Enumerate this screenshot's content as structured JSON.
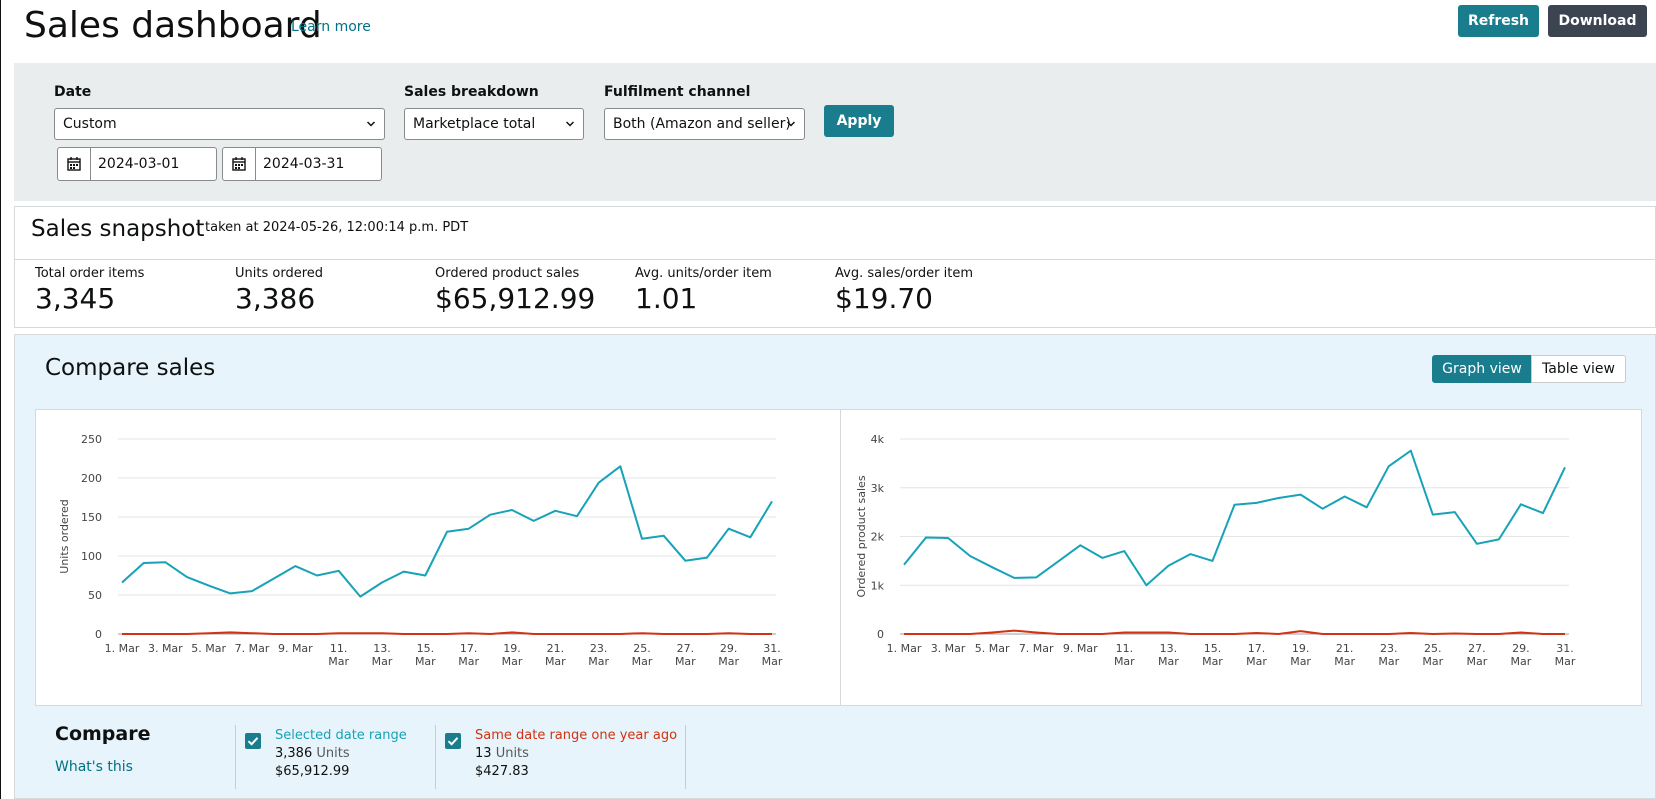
{
  "header": {
    "title": "Sales dashboard",
    "learn_more": "Learn more",
    "refresh_label": "Refresh",
    "download_label": "Download"
  },
  "filters": {
    "date_label": "Date",
    "date_value": "Custom",
    "start_date": "2024-03-01",
    "end_date": "2024-03-31",
    "breakdown_label": "Sales breakdown",
    "breakdown_value": "Marketplace total",
    "channel_label": "Fulfilment channel",
    "channel_value": "Both (Amazon and seller)",
    "apply_label": "Apply"
  },
  "snapshot": {
    "title": "Sales snapshot",
    "taken": "taken at 2024-05-26, 12:00:14 p.m. PDT",
    "metrics": [
      {
        "label": "Total order items",
        "value": "3,345"
      },
      {
        "label": "Units ordered",
        "value": "3,386"
      },
      {
        "label": "Ordered product sales",
        "value": "$65,912.99"
      },
      {
        "label": "Avg. units/order item",
        "value": "1.01"
      },
      {
        "label": "Avg. sales/order item",
        "value": "$19.70"
      }
    ]
  },
  "compare": {
    "title": "Compare sales",
    "graph_view": "Graph view",
    "table_view": "Table view",
    "label": "Compare",
    "whats_this": "What's this",
    "series": [
      {
        "name": "Selected date range",
        "units": "3,386",
        "units_word": "Units",
        "sales": "$65,912.99",
        "color": "#17a2b8"
      },
      {
        "name": "Same date range one year ago",
        "units": "13",
        "units_word": "Units",
        "sales": "$427.83",
        "color": "#d13212"
      }
    ]
  },
  "colors": {
    "teal": "#1a7d8e",
    "line_current": "#17a2b8",
    "line_previous": "#d13212",
    "link": "#007185"
  },
  "chart_data": [
    {
      "type": "line",
      "ylabel": "Units ordered",
      "ylim": [
        0,
        250
      ],
      "yticks": [
        0,
        50,
        100,
        150,
        200,
        250
      ],
      "ytick_labels": [
        "0",
        "50",
        "100",
        "150",
        "200",
        "250"
      ],
      "xtick_labels": [
        "1. Mar",
        "3. Mar",
        "5. Mar",
        "7. Mar",
        "9. Mar",
        "11. Mar",
        "13. Mar",
        "15. Mar",
        "17. Mar",
        "19. Mar",
        "21. Mar",
        "23. Mar",
        "25. Mar",
        "27. Mar",
        "29. Mar",
        "31. Mar"
      ],
      "x": [
        1,
        2,
        3,
        4,
        5,
        6,
        7,
        8,
        9,
        10,
        11,
        12,
        13,
        14,
        15,
        16,
        17,
        18,
        19,
        20,
        21,
        22,
        23,
        24,
        25,
        26,
        27,
        28,
        29,
        30,
        31
      ],
      "grid": true,
      "series": [
        {
          "name": "Selected date range",
          "values": [
            66,
            91,
            92,
            73,
            62,
            52,
            55,
            71,
            87,
            75,
            81,
            48,
            66,
            80,
            75,
            131,
            135,
            153,
            159,
            145,
            158,
            151,
            194,
            215,
            122,
            126,
            94,
            98,
            135,
            124,
            170
          ]
        },
        {
          "name": "Same date range one year ago",
          "values": [
            0,
            0,
            0,
            0,
            1,
            2,
            1,
            0,
            0,
            0,
            1,
            1,
            1,
            0,
            0,
            0,
            1,
            0,
            2,
            0,
            0,
            0,
            0,
            0,
            1,
            0,
            0,
            0,
            1,
            0,
            0
          ]
        }
      ]
    },
    {
      "type": "line",
      "ylabel": "Ordered product sales",
      "ylim": [
        0,
        4000
      ],
      "yticks": [
        0,
        1000,
        2000,
        3000,
        4000
      ],
      "ytick_labels": [
        "0",
        "1k",
        "2k",
        "3k",
        "4k"
      ],
      "xtick_labels": [
        "1. Mar",
        "3. Mar",
        "5. Mar",
        "7. Mar",
        "9. Mar",
        "11. Mar",
        "13. Mar",
        "15. Mar",
        "17. Mar",
        "19. Mar",
        "21. Mar",
        "23. Mar",
        "25. Mar",
        "27. Mar",
        "29. Mar",
        "31. Mar"
      ],
      "x": [
        1,
        2,
        3,
        4,
        5,
        6,
        7,
        8,
        9,
        10,
        11,
        12,
        13,
        14,
        15,
        16,
        17,
        18,
        19,
        20,
        21,
        22,
        23,
        24,
        25,
        26,
        27,
        28,
        29,
        30,
        31
      ],
      "grid": true,
      "series": [
        {
          "name": "Selected date range",
          "values": [
            1420,
            1980,
            1970,
            1600,
            1370,
            1150,
            1160,
            1490,
            1820,
            1560,
            1700,
            1000,
            1400,
            1640,
            1500,
            2650,
            2690,
            2790,
            2860,
            2570,
            2820,
            2600,
            3440,
            3760,
            2450,
            2500,
            1850,
            1940,
            2660,
            2480,
            3420
          ]
        },
        {
          "name": "Same date range one year ago",
          "values": [
            0,
            0,
            0,
            0,
            30,
            70,
            30,
            0,
            0,
            0,
            30,
            30,
            30,
            0,
            0,
            0,
            20,
            0,
            60,
            0,
            0,
            0,
            0,
            20,
            0,
            10,
            0,
            0,
            30,
            0,
            0
          ]
        }
      ]
    }
  ]
}
